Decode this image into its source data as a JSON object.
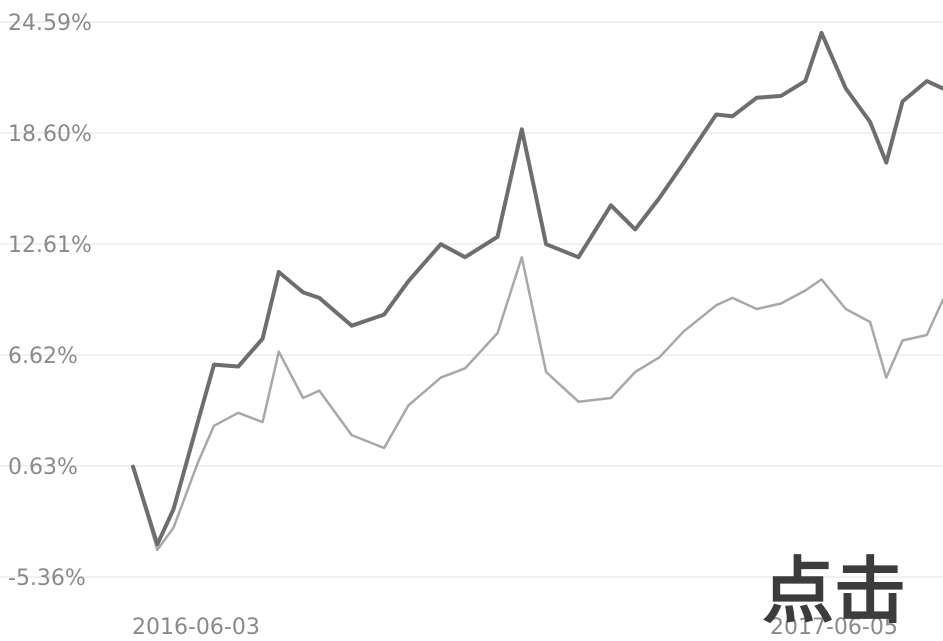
{
  "overlay_text": "点击",
  "chart_data": {
    "type": "line",
    "title": "",
    "xlabel": "",
    "ylabel": "",
    "grid": true,
    "yticks": [
      "24.59%",
      "18.60%",
      "12.61%",
      "6.62%",
      "0.63%",
      "-5.36%"
    ],
    "ytick_values": [
      24.59,
      18.6,
      12.61,
      6.62,
      0.63,
      -5.36
    ],
    "xticks": [
      "2016-06-03",
      "2017-06-05"
    ],
    "ylim": [
      -5.36,
      24.59
    ],
    "x": [
      0,
      0.03,
      0.05,
      0.08,
      0.1,
      0.13,
      0.16,
      0.18,
      0.21,
      0.23,
      0.27,
      0.31,
      0.34,
      0.38,
      0.41,
      0.45,
      0.48,
      0.51,
      0.55,
      0.59,
      0.62,
      0.65,
      0.68,
      0.72,
      0.74,
      0.77,
      0.8,
      0.83,
      0.85,
      0.88,
      0.91,
      0.93,
      0.95,
      0.98,
      1
    ],
    "series": [
      {
        "color": "#6e6e6e",
        "values": [
          0.6,
          -3.6,
          -1.7,
          3.0,
          6.1,
          6.0,
          7.5,
          11.1,
          10.0,
          9.7,
          8.2,
          8.8,
          10.6,
          12.6,
          11.9,
          13.0,
          18.8,
          12.6,
          11.9,
          14.7,
          13.4,
          15.1,
          17.0,
          19.6,
          19.5,
          20.5,
          20.6,
          21.4,
          24.0,
          21.0,
          19.2,
          17.0,
          20.3,
          21.4,
          21.0
        ]
      },
      {
        "color": "#a8a8a8",
        "values": [
          0.6,
          -3.9,
          -2.7,
          0.8,
          2.8,
          3.5,
          3.0,
          6.8,
          4.3,
          4.7,
          2.3,
          1.6,
          3.9,
          5.4,
          5.9,
          7.8,
          11.9,
          5.7,
          4.1,
          4.3,
          5.7,
          6.5,
          7.9,
          9.3,
          9.7,
          9.1,
          9.4,
          10.1,
          10.7,
          9.1,
          8.4,
          5.4,
          7.4,
          7.7,
          9.6
        ]
      }
    ]
  }
}
